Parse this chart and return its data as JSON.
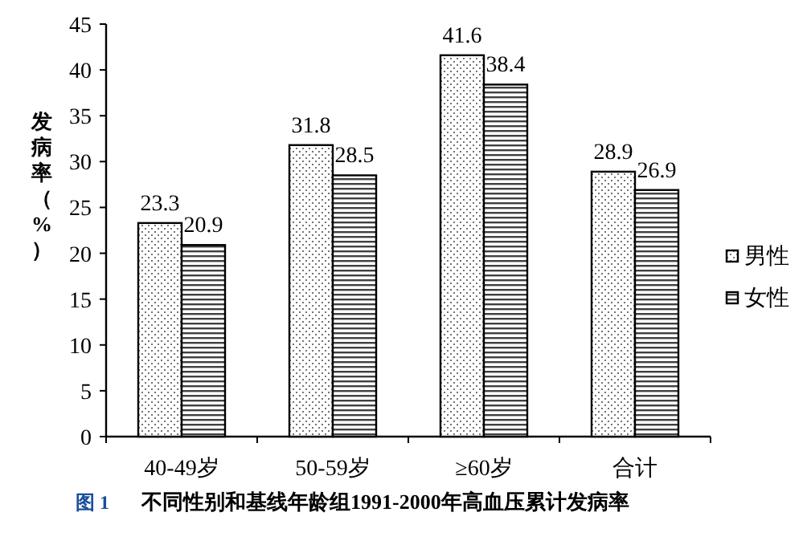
{
  "chart_data": {
    "type": "bar",
    "title": "不同性别和基线年龄组1991-2000年高血压累计发病率",
    "ylabel": "发病率（%）",
    "annotations": [
      "图 1"
    ],
    "categories": [
      "40-49岁",
      "50-59岁",
      "≥60岁",
      "合计"
    ],
    "series": [
      {
        "name": "男性",
        "color": "#000000",
        "values": [
          23.3,
          31.8,
          41.6,
          28.9
        ]
      },
      {
        "name": "女性",
        "color": "#000000",
        "values": [
          20.9,
          28.5,
          38.4,
          26.9
        ]
      }
    ],
    "ylim": [
      0,
      45
    ],
    "yticks": [
      0,
      5,
      10,
      15,
      20,
      25,
      30,
      35,
      40,
      45
    ],
    "data_labels": true,
    "legend": "right"
  }
}
